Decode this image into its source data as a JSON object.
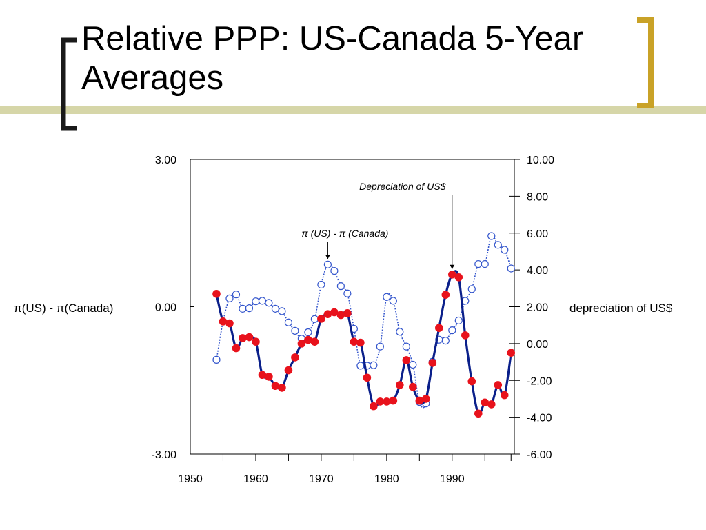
{
  "slide": {
    "title": "Relative PPP: US-Canada 5-Year Averages",
    "accent_bracket_color": "#1a1a1a",
    "accent_gold_color": "#c9a227",
    "accent_rule_color": "#d6d6a8"
  },
  "chart_data": {
    "type": "line",
    "xlim": [
      1950,
      1999.5
    ],
    "x_ticks": [
      "1950",
      "1960",
      "1970",
      "1980",
      "1990"
    ],
    "y_left": {
      "label": "π(US) - π(Canada)",
      "range": [
        -3,
        3
      ],
      "ticks": [
        "-3.00",
        "0.00",
        "3.00"
      ]
    },
    "y_right": {
      "label": "depreciation of US$",
      "range": [
        -6,
        10
      ],
      "ticks": [
        "-6.00",
        "-4.00",
        "-2.00",
        "0.00",
        "2.00",
        "4.00",
        "6.00",
        "8.00",
        "10.00"
      ]
    },
    "grid": false,
    "series": [
      {
        "name": "π (US) - π (Canada)",
        "axis": "left",
        "style": "dotted-line-open-circles",
        "color": "#3355cc",
        "x": [
          1954,
          1955,
          1956,
          1957,
          1958,
          1959,
          1960,
          1961,
          1962,
          1963,
          1964,
          1965,
          1966,
          1967,
          1968,
          1969,
          1970,
          1971,
          1972,
          1973,
          1974,
          1975,
          1976,
          1977,
          1978,
          1979,
          1980,
          1981,
          1982,
          1983,
          1984,
          1985,
          1986,
          1987,
          1988,
          1989,
          1990,
          1991,
          1992,
          1993,
          1994,
          1995,
          1996,
          1997,
          1998,
          1999
        ],
        "y": [
          -1.08,
          -0.3,
          0.17,
          0.25,
          -0.04,
          -0.03,
          0.11,
          0.12,
          0.08,
          -0.04,
          -0.09,
          -0.32,
          -0.49,
          -0.65,
          -0.52,
          -0.25,
          0.45,
          0.86,
          0.73,
          0.42,
          0.27,
          -0.45,
          -1.2,
          -1.2,
          -1.19,
          -0.81,
          0.2,
          0.12,
          -0.51,
          -0.81,
          -1.18,
          -1.94,
          -1.97,
          -1.12,
          -0.67,
          -0.69,
          -0.48,
          -0.28,
          0.12,
          0.36,
          0.87,
          0.87,
          1.44,
          1.26,
          1.16,
          0.78
        ]
      },
      {
        "name": "Depreciation of US$",
        "axis": "right",
        "style": "solid-line-filled-dots",
        "color": "#e8121c",
        "line_color": "#0a1f8a",
        "x": [
          1954,
          1955,
          1956,
          1957,
          1958,
          1959,
          1960,
          1961,
          1962,
          1963,
          1964,
          1965,
          1966,
          1967,
          1968,
          1969,
          1970,
          1971,
          1972,
          1973,
          1974,
          1975,
          1976,
          1977,
          1978,
          1979,
          1980,
          1981,
          1982,
          1983,
          1984,
          1985,
          1986,
          1987,
          1988,
          1989,
          1990,
          1991,
          1992,
          1993,
          1994,
          1995,
          1996,
          1997,
          1998,
          1999
        ],
        "y": [
          2.7,
          1.2,
          1.1,
          -0.25,
          0.3,
          0.35,
          0.1,
          -1.7,
          -1.8,
          -2.3,
          -2.4,
          -1.45,
          -0.75,
          0.0,
          0.2,
          0.1,
          1.35,
          1.6,
          1.7,
          1.55,
          1.65,
          0.1,
          0.05,
          -1.85,
          -3.4,
          -3.15,
          -3.15,
          -3.1,
          -2.25,
          -0.9,
          -2.35,
          -3.1,
          -3.0,
          -1.05,
          0.85,
          2.65,
          3.75,
          3.6,
          0.45,
          -2.05,
          -3.8,
          -3.2,
          -3.3,
          -2.25,
          -2.8,
          -0.5
        ]
      }
    ],
    "annotations": [
      {
        "text": "Depreciation of US$",
        "target_series": 1,
        "target_x": 1990,
        "text_x": 1988
      },
      {
        "text": "π (US) -  π (Canada)",
        "target_series": 0,
        "target_x": 1971,
        "text_x": 1971
      }
    ]
  }
}
